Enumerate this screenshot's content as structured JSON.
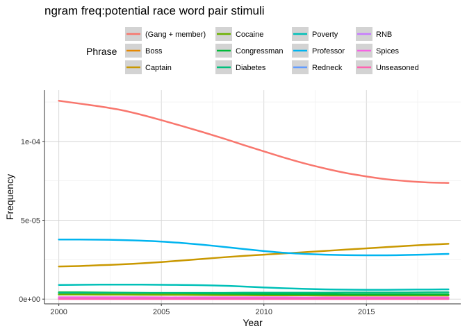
{
  "chart_data": {
    "type": "line",
    "title": "ngram freq:potential race word pair stimuli",
    "xlabel": "Year",
    "ylabel": "Frequency",
    "xlim": [
      1999.3,
      2019.6
    ],
    "ylim": [
      -3e-06,
      0.0001325
    ],
    "x_ticks": [
      2000,
      2005,
      2010,
      2015
    ],
    "x_tick_labels": [
      "2000",
      "2005",
      "2010",
      "2015"
    ],
    "y_ticks": [
      0,
      5e-05,
      0.0001
    ],
    "y_tick_labels": [
      "0e+00",
      "5e-05",
      "1e-04"
    ],
    "grid": true,
    "legend": {
      "title": "Phrase",
      "position": "top",
      "columns": 4
    },
    "x": [
      2000,
      2001,
      2002,
      2003,
      2004,
      2005,
      2006,
      2007,
      2008,
      2009,
      2010,
      2011,
      2012,
      2013,
      2014,
      2015,
      2016,
      2017,
      2018,
      2019
    ],
    "series": [
      {
        "name": "(Gang + member)",
        "color": "#F8766D",
        "values": [
          0.0001258,
          0.000124,
          0.0001222,
          0.00012,
          0.000117,
          0.0001135,
          0.0001098,
          0.000106,
          0.000102,
          9.78e-05,
          9.37e-05,
          8.97e-05,
          8.6e-05,
          8.28e-05,
          8e-05,
          7.78e-05,
          7.6e-05,
          7.48e-05,
          7.4e-05,
          7.37e-05
        ]
      },
      {
        "name": "Boss",
        "color": "#E58700",
        "values": [
          3e-06,
          3e-06,
          2.9e-06,
          2.9e-06,
          2.8e-06,
          2.7e-06,
          2.7e-06,
          2.6e-06,
          2.5e-06,
          2.5e-06,
          2.4e-06,
          2.4e-06,
          2.4e-06,
          2.3e-06,
          2.3e-06,
          2.3e-06,
          2.3e-06,
          2.3e-06,
          2.3e-06,
          2.3e-06
        ]
      },
      {
        "name": "Captain",
        "color": "#C99800",
        "values": [
          2.07e-05,
          2.1e-05,
          2.15e-05,
          2.2e-05,
          2.27e-05,
          2.35e-05,
          2.45e-05,
          2.55e-05,
          2.65e-05,
          2.74e-05,
          2.82e-05,
          2.9e-05,
          2.98e-05,
          3.06e-05,
          3.14e-05,
          3.22e-05,
          3.3e-05,
          3.38e-05,
          3.45e-05,
          3.51e-05
        ]
      },
      {
        "name": "Cocaine",
        "color": "#6BB100",
        "values": [
          3e-06,
          3e-06,
          3e-06,
          3e-06,
          2.9e-06,
          2.9e-06,
          2.9e-06,
          2.8e-06,
          2.8e-06,
          2.7e-06,
          2.6e-06,
          2.6e-06,
          2.6e-06,
          2.5e-06,
          2.5e-06,
          2.5e-06,
          2.5e-06,
          2.5e-06,
          2.5e-06,
          2.5e-06
        ]
      },
      {
        "name": "Congressman",
        "color": "#00BA38",
        "values": [
          4.3e-06,
          4.3e-06,
          4.2e-06,
          4.1e-06,
          4e-06,
          3.9e-06,
          3.8e-06,
          3.6e-06,
          3.5e-06,
          3.4e-06,
          3.3e-06,
          3.2e-06,
          3.1e-06,
          3.1e-06,
          3e-06,
          3e-06,
          3e-06,
          3e-06,
          3e-06,
          3e-06
        ]
      },
      {
        "name": "Diabetes",
        "color": "#00BF7D",
        "values": [
          4e-06,
          4e-06,
          4e-06,
          4e-06,
          4e-06,
          4e-06,
          4e-06,
          4e-06,
          4e-06,
          4.1e-06,
          4.1e-06,
          4.1e-06,
          4.1e-06,
          4.1e-06,
          4.2e-06,
          4.2e-06,
          4.2e-06,
          4.2e-06,
          4.3e-06,
          4.3e-06
        ]
      },
      {
        "name": "Poverty",
        "color": "#00C0B8",
        "values": [
          9e-06,
          9.1e-06,
          9.2e-06,
          9.2e-06,
          9.2e-06,
          9.1e-06,
          9e-06,
          8.8e-06,
          8.5e-06,
          8e-06,
          7.4e-06,
          6.9e-06,
          6.5e-06,
          6.2e-06,
          6e-06,
          5.9e-06,
          5.9e-06,
          6e-06,
          6.1e-06,
          6.2e-06
        ]
      },
      {
        "name": "Professor",
        "color": "#00B4EF",
        "values": [
          3.78e-05,
          3.78e-05,
          3.77e-05,
          3.75e-05,
          3.71e-05,
          3.65e-05,
          3.56e-05,
          3.45e-05,
          3.32e-05,
          3.18e-05,
          3.05e-05,
          2.94e-05,
          2.87e-05,
          2.82e-05,
          2.79e-05,
          2.78e-05,
          2.78e-05,
          2.8e-05,
          2.83e-05,
          2.87e-05
        ]
      },
      {
        "name": "Redneck",
        "color": "#619CFF",
        "values": [
          6e-07,
          6e-07,
          6e-07,
          6e-07,
          6e-07,
          6e-07,
          6e-07,
          6e-07,
          6e-07,
          6e-07,
          6e-07,
          6e-07,
          6e-07,
          6e-07,
          6e-07,
          6e-07,
          6e-07,
          6e-07,
          6e-07,
          6e-07
        ]
      },
      {
        "name": "RNB",
        "color": "#C77CFF",
        "values": [
          4e-07,
          4e-07,
          4e-07,
          4e-07,
          4e-07,
          4e-07,
          4e-07,
          4e-07,
          4e-07,
          4e-07,
          4e-07,
          4e-07,
          4e-07,
          4e-07,
          4e-07,
          4e-07,
          4e-07,
          4e-07,
          4e-07,
          4e-07
        ]
      },
      {
        "name": "Spices",
        "color": "#F564E3",
        "values": [
          1.2e-06,
          1.2e-06,
          1.2e-06,
          1.2e-06,
          1.2e-06,
          1.1e-06,
          1.1e-06,
          1.1e-06,
          1.1e-06,
          1.1e-06,
          1.1e-06,
          1.1e-06,
          1e-06,
          1e-06,
          1e-06,
          1e-06,
          1e-06,
          1e-06,
          1e-06,
          1e-06
        ]
      },
      {
        "name": "Unseasoned",
        "color": "#FF64B0",
        "values": [
          1e-07,
          1e-07,
          1e-07,
          1e-07,
          1e-07,
          1e-07,
          1e-07,
          1e-07,
          1e-07,
          1e-07,
          1e-07,
          1e-07,
          1e-07,
          1e-07,
          1e-07,
          1e-07,
          1e-07,
          1e-07,
          1e-07,
          1e-07
        ]
      }
    ]
  }
}
